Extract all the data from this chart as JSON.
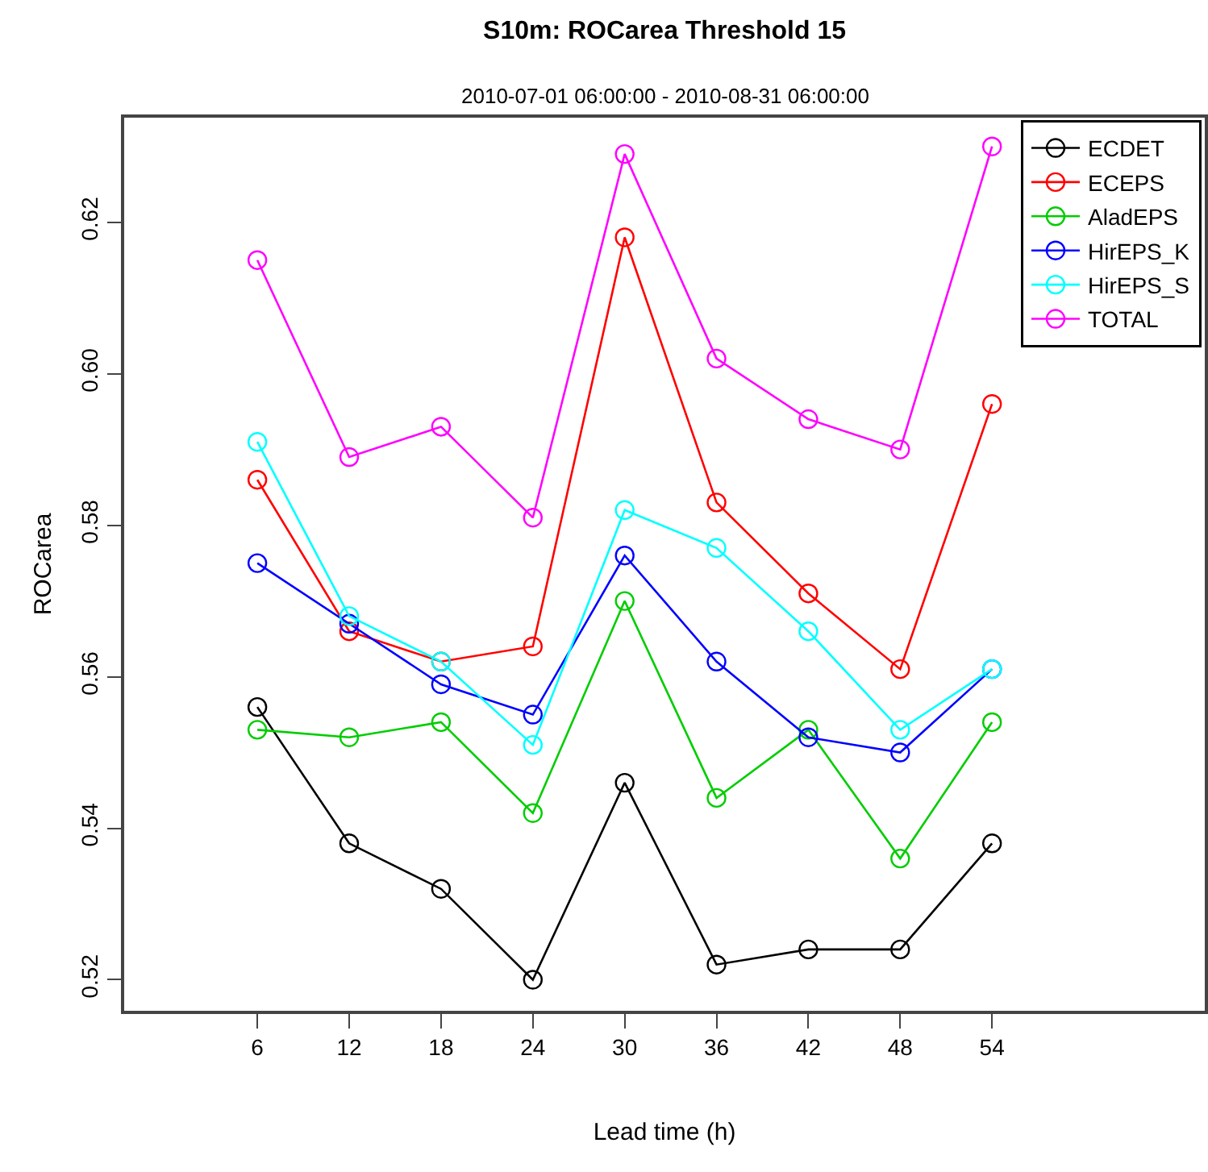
{
  "chart_data": {
    "type": "line",
    "title": "S10m: ROCarea Threshold 15",
    "subtitle": "2010-07-01 06:00:00 - 2010-08-31 06:00:00",
    "xlabel": "Lead time (h)",
    "ylabel": "ROCarea",
    "x": [
      6,
      12,
      18,
      24,
      30,
      36,
      42,
      48,
      54
    ],
    "xlim": [
      -2.7,
      67.9
    ],
    "xticks": [
      6,
      12,
      18,
      24,
      30,
      36,
      42,
      48,
      54
    ],
    "ylim": [
      0.5159,
      0.6338
    ],
    "yticks": [
      0.52,
      0.54,
      0.56,
      0.58,
      {
        "value": 0.6,
        "label": "0.60"
      },
      0.62
    ],
    "legend": "top right",
    "marker": "circle",
    "line_style": "solid",
    "series": [
      {
        "name": "ECDET",
        "color": "#000000",
        "values": [
          0.556,
          0.538,
          0.532,
          0.52,
          0.546,
          0.522,
          0.524,
          0.524,
          0.538
        ]
      },
      {
        "name": "ECEPS",
        "color": "#ff0000",
        "values": [
          0.586,
          0.566,
          0.562,
          0.564,
          0.618,
          0.583,
          0.571,
          0.561,
          0.596
        ]
      },
      {
        "name": "AladEPS",
        "color": "#00cd00",
        "values": [
          0.553,
          0.552,
          0.554,
          0.542,
          0.57,
          0.544,
          0.553,
          0.536,
          0.554
        ]
      },
      {
        "name": "HirEPS_K",
        "color": "#0000ff",
        "values": [
          0.575,
          0.567,
          0.559,
          0.555,
          0.576,
          0.562,
          0.552,
          0.55,
          0.561
        ]
      },
      {
        "name": "HirEPS_S",
        "color": "#00ffff",
        "values": [
          0.591,
          0.568,
          0.562,
          0.551,
          0.582,
          0.577,
          0.566,
          0.553,
          0.561
        ]
      },
      {
        "name": "TOTAL",
        "color": "#ff00ff",
        "values": [
          0.615,
          0.589,
          0.593,
          0.581,
          0.629,
          0.602,
          0.594,
          0.59,
          0.63
        ]
      }
    ]
  }
}
